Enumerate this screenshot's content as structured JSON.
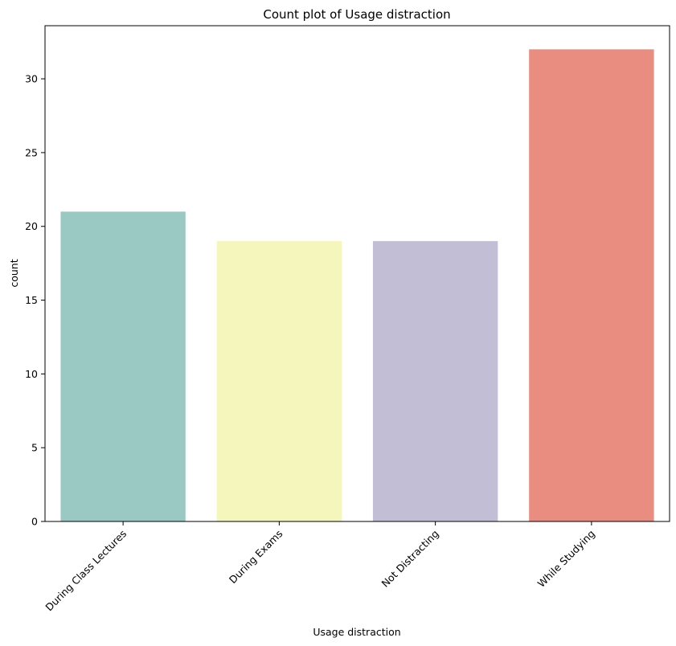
{
  "chart_data": {
    "type": "bar",
    "title": "Count plot of Usage distraction",
    "xlabel": "Usage distraction",
    "ylabel": "count",
    "categories": [
      "During Class Lectures",
      "During Exams",
      "Not Distracting",
      "While Studying"
    ],
    "values": [
      21,
      19,
      19,
      32
    ],
    "colors": [
      "#99c9c2",
      "#f5f6bb",
      "#c2bed6",
      "#ea8d81"
    ],
    "ylim": [
      0,
      33.6
    ],
    "yticks": [
      "0",
      "5",
      "10",
      "15",
      "20",
      "25",
      "30"
    ],
    "grid": false,
    "legend": "none"
  }
}
